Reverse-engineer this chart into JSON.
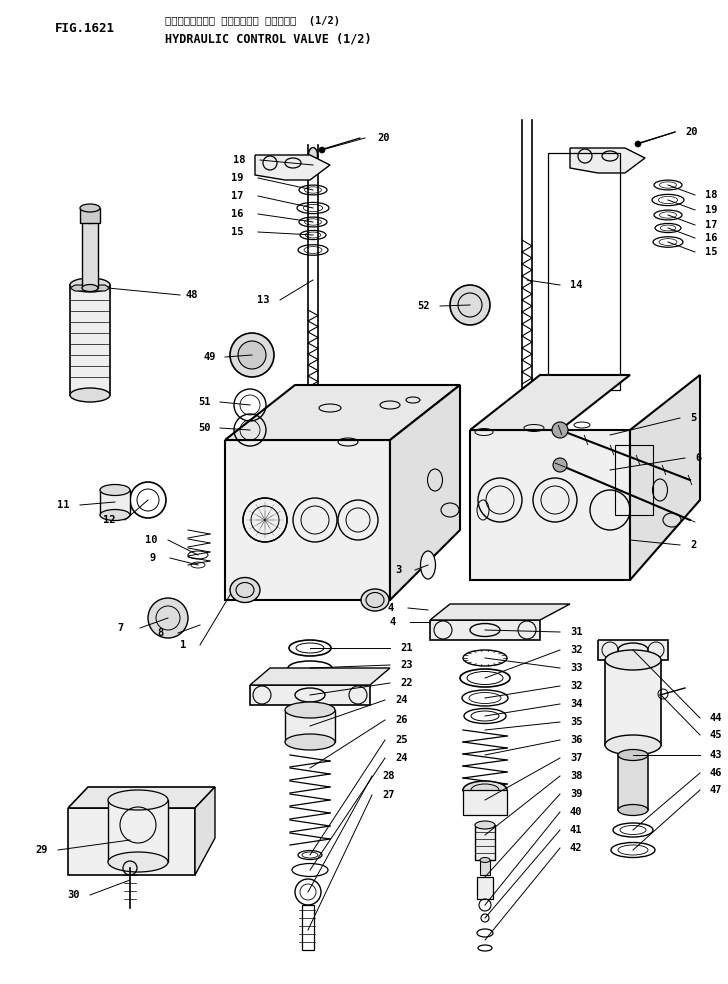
{
  "title_japanese": "ハイドロリック コントロール バルブ  (1/2)",
  "title_english": "HYDRAULIC CONTROL VALVE (1/2)",
  "fig_number": "FIG.1621",
  "bg_color": "#ffffff",
  "lc": "#000000",
  "fig_width": 7.28,
  "fig_height": 9.84,
  "dpi": 100
}
